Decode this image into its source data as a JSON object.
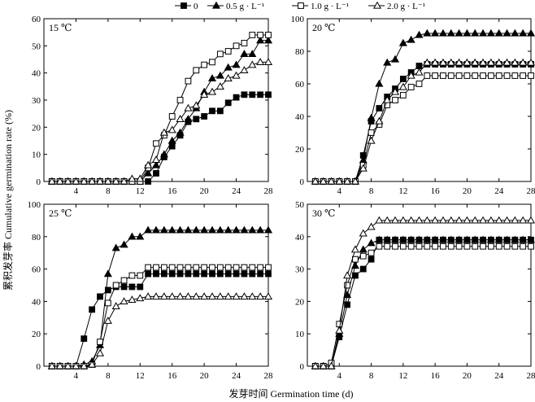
{
  "figure": {
    "ylabel": "累积发芽率 Cumulative germination rate (%)",
    "xlabel": "发芽时间 Germination time (d)"
  },
  "legend": {
    "items": [
      {
        "label": "0",
        "marker": "square-filled"
      },
      {
        "label": "0.5 g · L⁻¹",
        "marker": "triangle-filled"
      },
      {
        "label": "1.0 g · L⁻¹",
        "marker": "square-open"
      },
      {
        "label": "2.0 g · L⁻¹",
        "marker": "triangle-open"
      }
    ]
  },
  "chart_data": [
    {
      "type": "line",
      "title": "15 ℃",
      "xlim": [
        0,
        28
      ],
      "xticks": [
        4,
        8,
        12,
        16,
        20,
        24,
        28
      ],
      "ylim": [
        0,
        60
      ],
      "yticks": [
        0,
        10,
        20,
        30,
        40,
        50,
        60
      ],
      "x": [
        1,
        2,
        3,
        4,
        5,
        6,
        7,
        8,
        9,
        10,
        11,
        12,
        13,
        14,
        15,
        16,
        17,
        18,
        19,
        20,
        21,
        22,
        23,
        24,
        25,
        26,
        27,
        28
      ],
      "series": [
        {
          "name": "0",
          "values": [
            0,
            0,
            0,
            0,
            0,
            0,
            0,
            0,
            0,
            0,
            0,
            0,
            0,
            3,
            9,
            13,
            17,
            22,
            23,
            24,
            26,
            26,
            29,
            31,
            32,
            32,
            32,
            32
          ]
        },
        {
          "name": "0.5 g · L⁻¹",
          "values": [
            0,
            0,
            0,
            0,
            0,
            0,
            0,
            0,
            0,
            0,
            0,
            0,
            3,
            6,
            10,
            15,
            18,
            23,
            27,
            33,
            38,
            39,
            42,
            43,
            47,
            47,
            52,
            52
          ]
        },
        {
          "name": "1.0 g · L⁻¹",
          "values": [
            0,
            0,
            0,
            0,
            0,
            0,
            0,
            0,
            0,
            0,
            0,
            0,
            5,
            14,
            17,
            24,
            30,
            37,
            41,
            43,
            44,
            47,
            48,
            50,
            51,
            54,
            54,
            54
          ]
        },
        {
          "name": "2.0 g · L⁻¹",
          "values": [
            0,
            0,
            0,
            0,
            0,
            0,
            0,
            0,
            0,
            0,
            1,
            1,
            6,
            8,
            18,
            19,
            23,
            27,
            28,
            32,
            33,
            35,
            38,
            39,
            41,
            43,
            44,
            44
          ]
        }
      ]
    },
    {
      "type": "line",
      "title": "20 ℃",
      "xlim": [
        0,
        28
      ],
      "xticks": [
        4,
        8,
        12,
        16,
        20,
        24,
        28
      ],
      "ylim": [
        0,
        100
      ],
      "yticks": [
        0,
        20,
        40,
        60,
        80,
        100
      ],
      "x": [
        1,
        2,
        3,
        4,
        5,
        6,
        7,
        8,
        9,
        10,
        11,
        12,
        13,
        14,
        15,
        16,
        17,
        18,
        19,
        20,
        21,
        22,
        23,
        24,
        25,
        26,
        27,
        28
      ],
      "series": [
        {
          "name": "0",
          "values": [
            0,
            0,
            0,
            0,
            0,
            0,
            16,
            37,
            45,
            52,
            57,
            63,
            67,
            71,
            72,
            72,
            72,
            72,
            72,
            72,
            72,
            72,
            72,
            72,
            72,
            72,
            72,
            72
          ]
        },
        {
          "name": "0.5 g · L⁻¹",
          "values": [
            0,
            0,
            0,
            0,
            0,
            0,
            13,
            39,
            60,
            73,
            75,
            85,
            87,
            90,
            91,
            91,
            91,
            91,
            91,
            91,
            91,
            91,
            91,
            91,
            91,
            91,
            91,
            91
          ]
        },
        {
          "name": "1.0 g · L⁻¹",
          "values": [
            0,
            0,
            0,
            0,
            0,
            0,
            10,
            30,
            35,
            47,
            50,
            53,
            58,
            60,
            65,
            65,
            65,
            65,
            65,
            65,
            65,
            65,
            65,
            65,
            65,
            65,
            65,
            65
          ]
        },
        {
          "name": "2.0 g · L⁻¹",
          "values": [
            0,
            0,
            0,
            0,
            0,
            0,
            8,
            25,
            37,
            50,
            55,
            58,
            65,
            67,
            73,
            73,
            73,
            73,
            73,
            73,
            73,
            73,
            73,
            73,
            73,
            73,
            73,
            73
          ]
        }
      ]
    },
    {
      "type": "line",
      "title": "25 ℃",
      "xlim": [
        0,
        28
      ],
      "xticks": [
        4,
        8,
        12,
        16,
        20,
        24,
        28
      ],
      "ylim": [
        0,
        100
      ],
      "yticks": [
        0,
        20,
        40,
        60,
        80,
        100
      ],
      "x": [
        1,
        2,
        3,
        4,
        5,
        6,
        7,
        8,
        9,
        10,
        11,
        12,
        13,
        14,
        15,
        16,
        17,
        18,
        19,
        20,
        21,
        22,
        23,
        24,
        25,
        26,
        27,
        28
      ],
      "series": [
        {
          "name": "0",
          "values": [
            0,
            0,
            0,
            0,
            17,
            35,
            43,
            47,
            49,
            49,
            49,
            49,
            57,
            57,
            57,
            57,
            57,
            57,
            57,
            57,
            57,
            57,
            57,
            57,
            57,
            57,
            57,
            57
          ]
        },
        {
          "name": "0.5 g · L⁻¹",
          "values": [
            0,
            0,
            0,
            0,
            1,
            3,
            13,
            57,
            73,
            75,
            80,
            80,
            84,
            84,
            84,
            84,
            84,
            84,
            84,
            84,
            84,
            84,
            84,
            84,
            84,
            84,
            84,
            84
          ]
        },
        {
          "name": "1.0 g · L⁻¹",
          "values": [
            0,
            0,
            0,
            0,
            0,
            1,
            15,
            39,
            50,
            53,
            56,
            56,
            61,
            61,
            61,
            61,
            61,
            61,
            61,
            61,
            61,
            61,
            61,
            61,
            61,
            61,
            61,
            61
          ]
        },
        {
          "name": "2.0 g · L⁻¹",
          "values": [
            0,
            0,
            0,
            0,
            0,
            1,
            8,
            28,
            37,
            40,
            41,
            42,
            43,
            43,
            43,
            43,
            43,
            43,
            43,
            43,
            43,
            43,
            43,
            43,
            43,
            43,
            43,
            43
          ]
        }
      ]
    },
    {
      "type": "line",
      "title": "30 ℃",
      "xlim": [
        0,
        28
      ],
      "xticks": [
        4,
        8,
        12,
        16,
        20,
        24,
        28
      ],
      "ylim": [
        0,
        50
      ],
      "yticks": [
        0,
        10,
        20,
        30,
        40,
        50
      ],
      "x": [
        1,
        2,
        3,
        4,
        5,
        6,
        7,
        8,
        9,
        10,
        11,
        12,
        13,
        14,
        15,
        16,
        17,
        18,
        19,
        20,
        21,
        22,
        23,
        24,
        25,
        26,
        27,
        28
      ],
      "series": [
        {
          "name": "0",
          "values": [
            0,
            0,
            0,
            9,
            19,
            28,
            30,
            33,
            39,
            39,
            39,
            39,
            39,
            39,
            39,
            39,
            39,
            39,
            39,
            39,
            39,
            39,
            39,
            39,
            39,
            39,
            39,
            39
          ]
        },
        {
          "name": "0.5 g · L⁻¹",
          "values": [
            0,
            0,
            0,
            10,
            22,
            31,
            36,
            38,
            39,
            39,
            39,
            39,
            39,
            39,
            39,
            39,
            39,
            39,
            39,
            39,
            39,
            39,
            39,
            39,
            39,
            39,
            39,
            39
          ]
        },
        {
          "name": "1.0 g · L⁻¹",
          "values": [
            0,
            0,
            1,
            13,
            25,
            33,
            34,
            35,
            37,
            37,
            37,
            37,
            37,
            37,
            37,
            37,
            37,
            37,
            37,
            37,
            37,
            37,
            37,
            37,
            37,
            37,
            37,
            37
          ]
        },
        {
          "name": "2.0 g · L⁻¹",
          "values": [
            0,
            0,
            0,
            11,
            28,
            36,
            41,
            43,
            45,
            45,
            45,
            45,
            45,
            45,
            45,
            45,
            45,
            45,
            45,
            45,
            45,
            45,
            45,
            45,
            45,
            45,
            45,
            45
          ]
        }
      ]
    }
  ]
}
